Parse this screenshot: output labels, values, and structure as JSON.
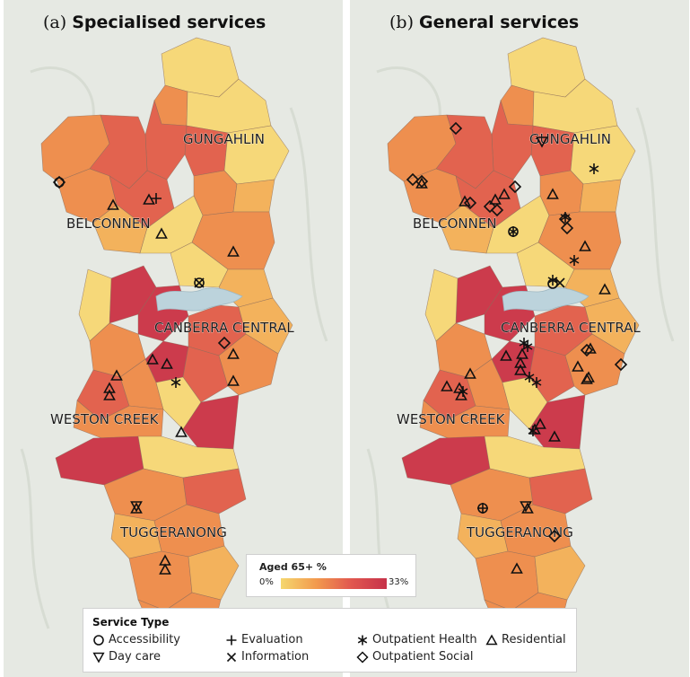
{
  "panels": [
    {
      "letter": "(a)",
      "title": "Specialised services",
      "show_outpatient_cluster": false
    },
    {
      "letter": "(b)",
      "title": "General services",
      "show_outpatient_cluster": true
    }
  ],
  "regions": {
    "gungahlin": "GUNGAHLIN",
    "belconnen": "BELCONNEN",
    "canberra_central": "CANBERRA CENTRAL",
    "weston_creek": "WESTON CREEK",
    "tuggeranong": "TUGGERANONG"
  },
  "colorscale": {
    "title": "Aged 65+ %",
    "min_label": "0%",
    "max_label": "33%",
    "colors": [
      "#f5d76e",
      "#f29a4e",
      "#e1574f",
      "#c6324a"
    ]
  },
  "legend": {
    "title": "Service Type",
    "items": [
      {
        "key": "accessibility",
        "label": "Accessibility",
        "icon": "circle-icon"
      },
      {
        "key": "evaluation",
        "label": "Evaluation",
        "icon": "plus-icon"
      },
      {
        "key": "outpatient_health",
        "label": "Outpatient Health",
        "icon": "asterisk-icon"
      },
      {
        "key": "residential",
        "label": "Residential",
        "icon": "triangle-up-icon"
      },
      {
        "key": "day_care",
        "label": "Day care",
        "icon": "triangle-down-icon"
      },
      {
        "key": "information",
        "label": "Information",
        "icon": "cross-icon"
      },
      {
        "key": "outpatient_social",
        "label": "Outpatient Social",
        "icon": "diamond-icon"
      }
    ]
  }
}
